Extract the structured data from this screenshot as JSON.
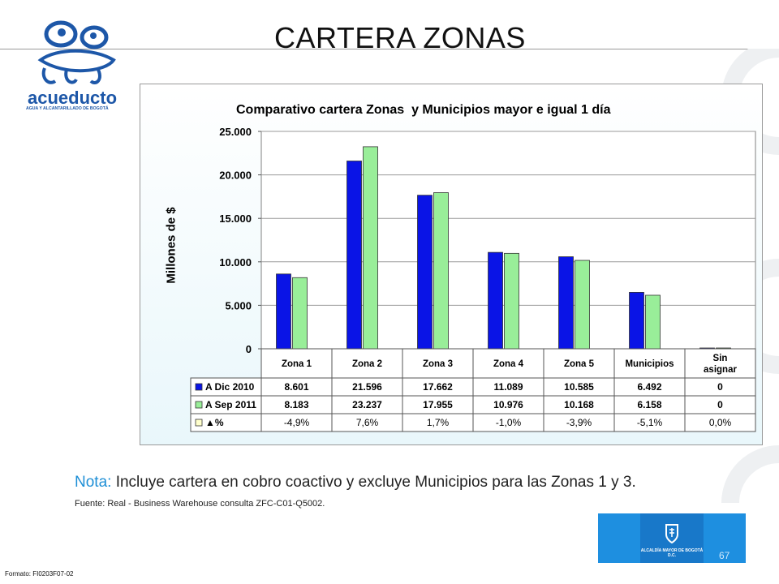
{
  "slide": {
    "title": "CARTERA ZONAS",
    "logo_word": "acueducto",
    "logo_subtitle": "AGUA Y ALCANTARILLADO DE BOGOTÁ",
    "note_prefix": "Nota:",
    "note_text": " Incluye cartera en cobro coactivo y excluye Municipios para las Zonas 1 y 3.",
    "source": "Fuente: Real - Business Warehouse  consulta ZFC-C01-Q5002.",
    "formato": "Formato: FI0203F07-02",
    "badge_text": "ALCALDÍA MAYOR DE BOGOTÁ D.C.",
    "page_number": "67"
  },
  "colors": {
    "series_a": "#0a14e6",
    "series_b": "#99ee99",
    "series_c": "#ffffcc",
    "accent": "#1e8fd6"
  },
  "chart_data": {
    "type": "bar",
    "title": "Comparativo cartera Zonas  y Municipios mayor e igual 1 día",
    "ylabel": "Millones de $",
    "xlabel": "",
    "ylim": [
      0,
      25000
    ],
    "yticks": [
      0,
      5000,
      10000,
      15000,
      20000,
      25000
    ],
    "ytick_labels": [
      "0",
      "5.000",
      "10.000",
      "15.000",
      "20.000",
      "25.000"
    ],
    "grid": true,
    "categories": [
      "Zona 1",
      "Zona 2",
      "Zona 3",
      "Zona 4",
      "Zona 5",
      "Municipios",
      "Sin asignar"
    ],
    "series": [
      {
        "name": "A Dic 2010",
        "values": [
          8601,
          21596,
          17662,
          11089,
          10585,
          6492,
          0
        ],
        "labels": [
          "8.601",
          "21.596",
          "17.662",
          "11.089",
          "10.585",
          "6.492",
          "0"
        ]
      },
      {
        "name": "A  Sep 2011",
        "values": [
          8183,
          23237,
          17955,
          10976,
          10168,
          6158,
          0
        ],
        "labels": [
          "8.183",
          "23.237",
          "17.955",
          "10.976",
          "10.168",
          "6.158",
          "0"
        ]
      },
      {
        "name": "▲%",
        "values": [
          -4.9,
          7.6,
          1.7,
          -1.0,
          -3.9,
          -5.1,
          0.0
        ],
        "labels": [
          "-4,9%",
          "7,6%",
          "1,7%",
          "-1,0%",
          "-3,9%",
          "-5,1%",
          "0,0%"
        ]
      }
    ]
  }
}
